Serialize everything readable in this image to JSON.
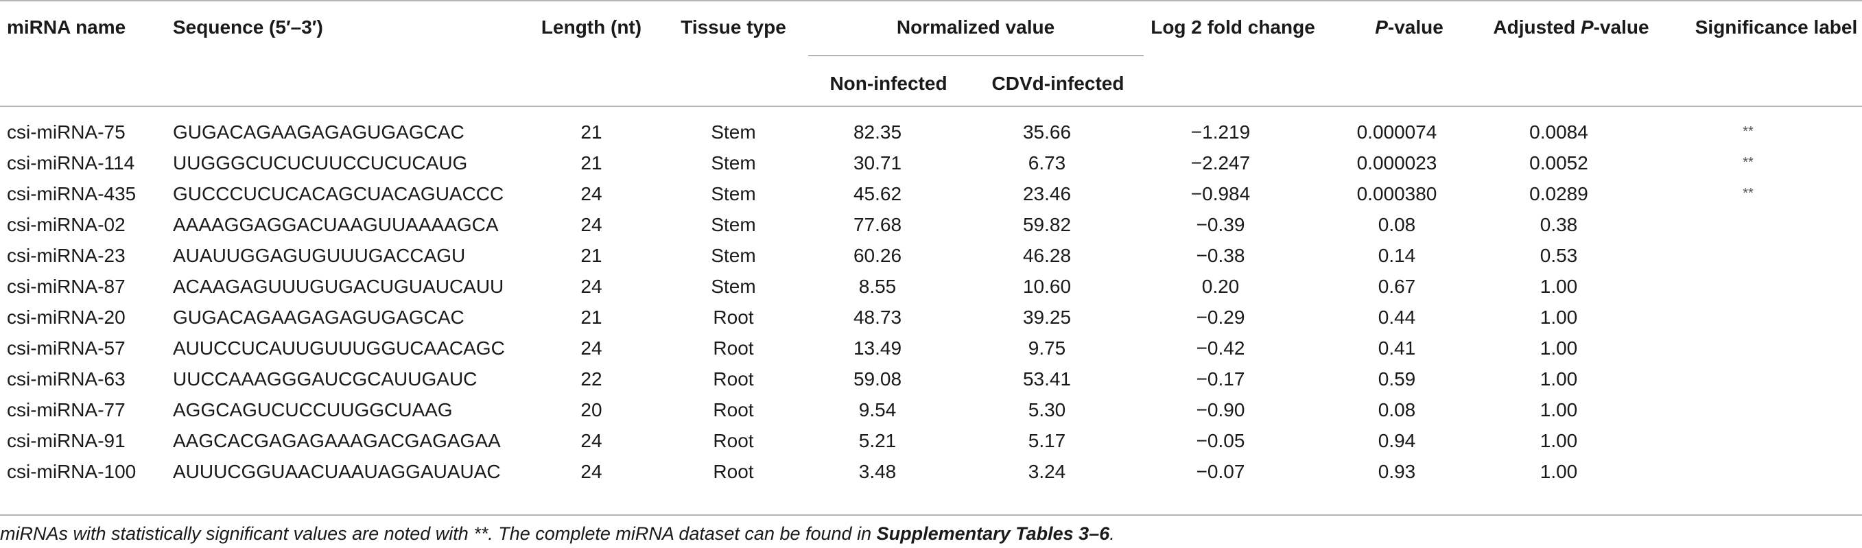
{
  "headers": {
    "name": "miRNA name",
    "sequence": "Sequence (5′–3′)",
    "length": "Length (nt)",
    "tissue": "Tissue type",
    "normalized": "Normalized value",
    "non_infected": "Non-infected",
    "cdvd_infected": "CDVd-infected",
    "log2fc": "Log 2 fold change",
    "pvalue_italic": "P",
    "pvalue_rest": "-value",
    "adj_prefix": "Adjusted ",
    "adj_italic": "P",
    "adj_rest": "-value",
    "significance": "Significance label"
  },
  "rows": [
    {
      "name": "csi-miRNA-75",
      "seq": "GUGACAGAAGAGAGUGAGCAC",
      "len": "21",
      "tissue": "Stem",
      "non": "82.35",
      "cdvd": "35.66",
      "lfc": "−1.219",
      "p": "0.000074",
      "adj": "0.0084",
      "sig": "**"
    },
    {
      "name": "csi-miRNA-114",
      "seq": "UUGGGCUCUCUUCCUCUCAUG",
      "len": "21",
      "tissue": "Stem",
      "non": "30.71",
      "cdvd": "6.73",
      "lfc": "−2.247",
      "p": "0.000023",
      "adj": "0.0052",
      "sig": "**"
    },
    {
      "name": "csi-miRNA-435",
      "seq": "GUCCCUCUCACAGCUACAGUACCC",
      "len": "24",
      "tissue": "Stem",
      "non": "45.62",
      "cdvd": "23.46",
      "lfc": "−0.984",
      "p": "0.000380",
      "adj": "0.0289",
      "sig": "**"
    },
    {
      "name": "csi-miRNA-02",
      "seq": "AAAAGGAGGACUAAGUUAAAAGCA",
      "len": "24",
      "tissue": "Stem",
      "non": "77.68",
      "cdvd": "59.82",
      "lfc": "−0.39",
      "p": "0.08",
      "adj": "0.38",
      "sig": ""
    },
    {
      "name": "csi-miRNA-23",
      "seq": "AUAUUGGAGUGUUUGACCAGU",
      "len": "21",
      "tissue": "Stem",
      "non": "60.26",
      "cdvd": "46.28",
      "lfc": "−0.38",
      "p": "0.14",
      "adj": "0.53",
      "sig": ""
    },
    {
      "name": "csi-miRNA-87",
      "seq": "ACAAGAGUUUGUGACUGUAUCAUU",
      "len": "24",
      "tissue": "Stem",
      "non": "8.55",
      "cdvd": "10.60",
      "lfc": "0.20",
      "p": "0.67",
      "adj": "1.00",
      "sig": ""
    },
    {
      "name": "csi-miRNA-20",
      "seq": "GUGACAGAAGAGAGUGAGCAC",
      "len": "21",
      "tissue": "Root",
      "non": "48.73",
      "cdvd": "39.25",
      "lfc": "−0.29",
      "p": "0.44",
      "adj": "1.00",
      "sig": ""
    },
    {
      "name": "csi-miRNA-57",
      "seq": "AUUCCUCAUUGUUUGGUCAACAGC",
      "len": "24",
      "tissue": "Root",
      "non": "13.49",
      "cdvd": "9.75",
      "lfc": "−0.42",
      "p": "0.41",
      "adj": "1.00",
      "sig": ""
    },
    {
      "name": "csi-miRNA-63",
      "seq": "UUCCAAAGGGAUCGCAUUGAUC",
      "len": "22",
      "tissue": "Root",
      "non": "59.08",
      "cdvd": "53.41",
      "lfc": "−0.17",
      "p": "0.59",
      "adj": "1.00",
      "sig": ""
    },
    {
      "name": "csi-miRNA-77",
      "seq": "AGGCAGUCUCCUUGGCUAAG",
      "len": "20",
      "tissue": "Root",
      "non": "9.54",
      "cdvd": "5.30",
      "lfc": "−0.90",
      "p": "0.08",
      "adj": "1.00",
      "sig": ""
    },
    {
      "name": "csi-miRNA-91",
      "seq": "AAGCACGAGAGAAAGACGAGAGAA",
      "len": "24",
      "tissue": "Root",
      "non": "5.21",
      "cdvd": "5.17",
      "lfc": "−0.05",
      "p": "0.94",
      "adj": "1.00",
      "sig": ""
    },
    {
      "name": "csi-miRNA-100",
      "seq": "AUUUCGGUAACUAAUAGGAUAUAC",
      "len": "24",
      "tissue": "Root",
      "non": "3.48",
      "cdvd": "3.24",
      "lfc": "−0.07",
      "p": "0.93",
      "adj": "1.00",
      "sig": ""
    }
  ],
  "footnote": {
    "prefix": "miRNAs with statistically significant values are noted with **. The complete miRNA dataset can be found in ",
    "bold": "Supplementary Tables 3–6",
    "suffix": "."
  }
}
